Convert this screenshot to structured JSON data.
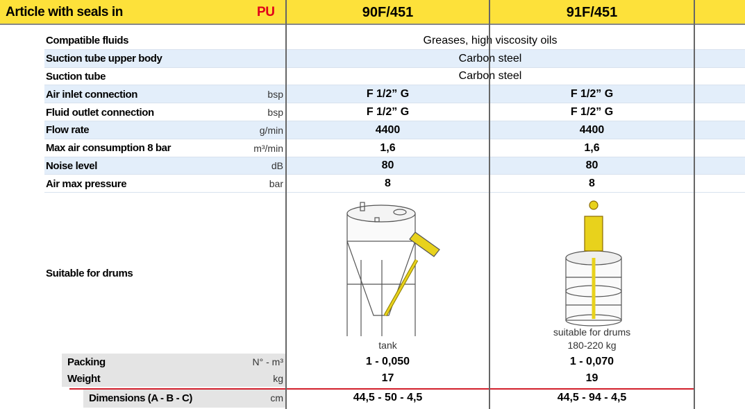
{
  "header": {
    "title": "Article with seals in",
    "seal": "PU",
    "models": [
      "90F/451",
      "91F/451"
    ]
  },
  "rows": [
    {
      "label": "Compatible fluids",
      "values": [
        "Greases, high viscosity oils"
      ]
    },
    {
      "label": "Suction tube upper body",
      "values": [
        "Carbon steel"
      ]
    },
    {
      "label": "Suction tube",
      "values": [
        "Carbon steel"
      ]
    },
    {
      "label": "Air inlet connection",
      "unit": "bsp",
      "values": [
        "F 1/2” G",
        "F 1/2” G"
      ]
    },
    {
      "label": "Fluid outlet connection",
      "unit": "bsp",
      "values": [
        "F 1/2” G",
        "F 1/2” G"
      ]
    },
    {
      "label": "Flow rate",
      "unit": "g/min",
      "values": [
        "4400",
        "4400"
      ]
    },
    {
      "label": "Max air consumption 8 bar",
      "unit": "m³/min",
      "values": [
        "1,6",
        "1,6"
      ]
    },
    {
      "label": "Noise level",
      "unit": "dB",
      "values": [
        "80",
        "80"
      ]
    },
    {
      "label": "Air max pressure",
      "unit": "bar",
      "values": [
        "8",
        "8"
      ]
    }
  ],
  "drums": {
    "label": "Suitable for drums",
    "captions": [
      [
        "tank"
      ],
      [
        "suitable for drums",
        "180-220 kg"
      ]
    ]
  },
  "footer": [
    {
      "label": "Packing",
      "unit": "N° - m³",
      "values": [
        "1 - 0,050",
        "1 - 0,070"
      ]
    },
    {
      "label": "Weight",
      "unit": "kg",
      "values": [
        "17",
        "19"
      ]
    },
    {
      "label": "Dimensions (A - B - C)",
      "unit": "cm",
      "values": [
        "44,5 - 50 - 4,5",
        "44,5 - 94 - 4,5"
      ]
    }
  ]
}
